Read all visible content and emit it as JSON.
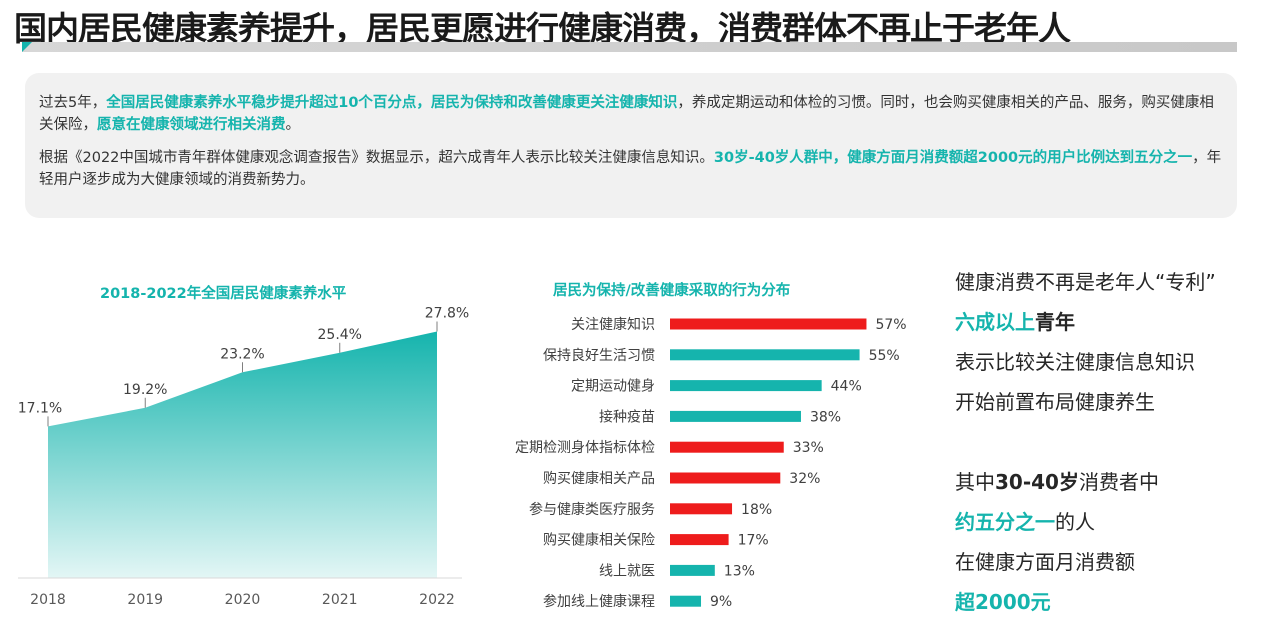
{
  "header": {
    "title": "国内居民健康素养提升，居民更愿进行健康消费，消费群体不再止于老年人"
  },
  "summary": {
    "p1": [
      {
        "t": "过去5年，",
        "hl": false
      },
      {
        "t": "全国居民健康素养水平稳步提升超过10个百分点，居民为保持和改善健康更关注健康知识",
        "hl": true
      },
      {
        "t": "，养成定期运动和体检的习惯。同时，也会购买健康相关的产品、服务，购买健康相关保险，",
        "hl": false
      },
      {
        "t": "愿意在健康领域进行相关消费",
        "hl": true
      },
      {
        "t": "。",
        "hl": false
      }
    ],
    "p2": [
      {
        "t": "根据《2022中国城市青年群体健康观念调查报告》数据显示，超六成青年人表示比较关注健康信息知识。",
        "hl": false
      },
      {
        "t": "30岁-40岁人群中，健康方面月消费额超2000元的用户比例达到五分之一",
        "hl": true
      },
      {
        "t": "，年轻用户逐步成为大健康领域的消费新势力。",
        "hl": false
      }
    ]
  },
  "chart_data": [
    {
      "type": "area",
      "title": "2018-2022年全国居民健康素养水平",
      "x": [
        "2018",
        "2019",
        "2020",
        "2021",
        "2022"
      ],
      "values": [
        17.1,
        19.2,
        23.2,
        25.4,
        27.8
      ],
      "labels": [
        "17.1%",
        "19.2%",
        "23.2%",
        "25.4%",
        "27.8%"
      ],
      "ylim": [
        0,
        30
      ],
      "grid": false,
      "color": "#15b4ad"
    },
    {
      "type": "bar",
      "orientation": "horizontal",
      "title": "居民为保持/改善健康采取的行为分布",
      "categories": [
        "关注健康知识",
        "保持良好生活习惯",
        "定期运动健身",
        "接种疫苗",
        "定期检测身体指标体检",
        "购买健康相关产品",
        "参与健康类医疗服务",
        "购买健康相关保险",
        "线上就医",
        "参加线上健康课程"
      ],
      "values": [
        57,
        55,
        44,
        38,
        33,
        32,
        18,
        17,
        13,
        9
      ],
      "labels": [
        "57%",
        "55%",
        "44%",
        "38%",
        "33%",
        "32%",
        "18%",
        "17%",
        "13%",
        "9%"
      ],
      "bar_colors": [
        "#ee1c1c",
        "#15b4ad",
        "#15b4ad",
        "#15b4ad",
        "#ee1c1c",
        "#ee1c1c",
        "#ee1c1c",
        "#ee1c1c",
        "#15b4ad",
        "#15b4ad"
      ],
      "xlim": [
        0,
        60
      ],
      "grid": false
    }
  ],
  "side": {
    "lines": [
      [
        {
          "t": "健康消费不再是老年人“专利”",
          "s": "n"
        }
      ],
      [
        {
          "t": "六成以上",
          "s": "hl"
        },
        {
          "t": "青年",
          "s": "b"
        }
      ],
      [
        {
          "t": "表示比较关注健康信息知识",
          "s": "n"
        }
      ],
      [
        {
          "t": "开始前置布局健康养生",
          "s": "n"
        }
      ],
      [
        {
          "t": "",
          "s": "n"
        }
      ],
      [
        {
          "t": "其中",
          "s": "n"
        },
        {
          "t": "30-40岁",
          "s": "b"
        },
        {
          "t": "消费者中",
          "s": "n"
        }
      ],
      [
        {
          "t": "约五分之一",
          "s": "hl"
        },
        {
          "t": "的人",
          "s": "n"
        }
      ],
      [
        {
          "t": "在健康方面月消费额",
          "s": "n"
        }
      ],
      [
        {
          "t": "超2000元",
          "s": "hl"
        }
      ]
    ]
  },
  "colors": {
    "accent": "#15b4ad",
    "red": "#ee1c1c",
    "panel": "#f1f1f1"
  }
}
